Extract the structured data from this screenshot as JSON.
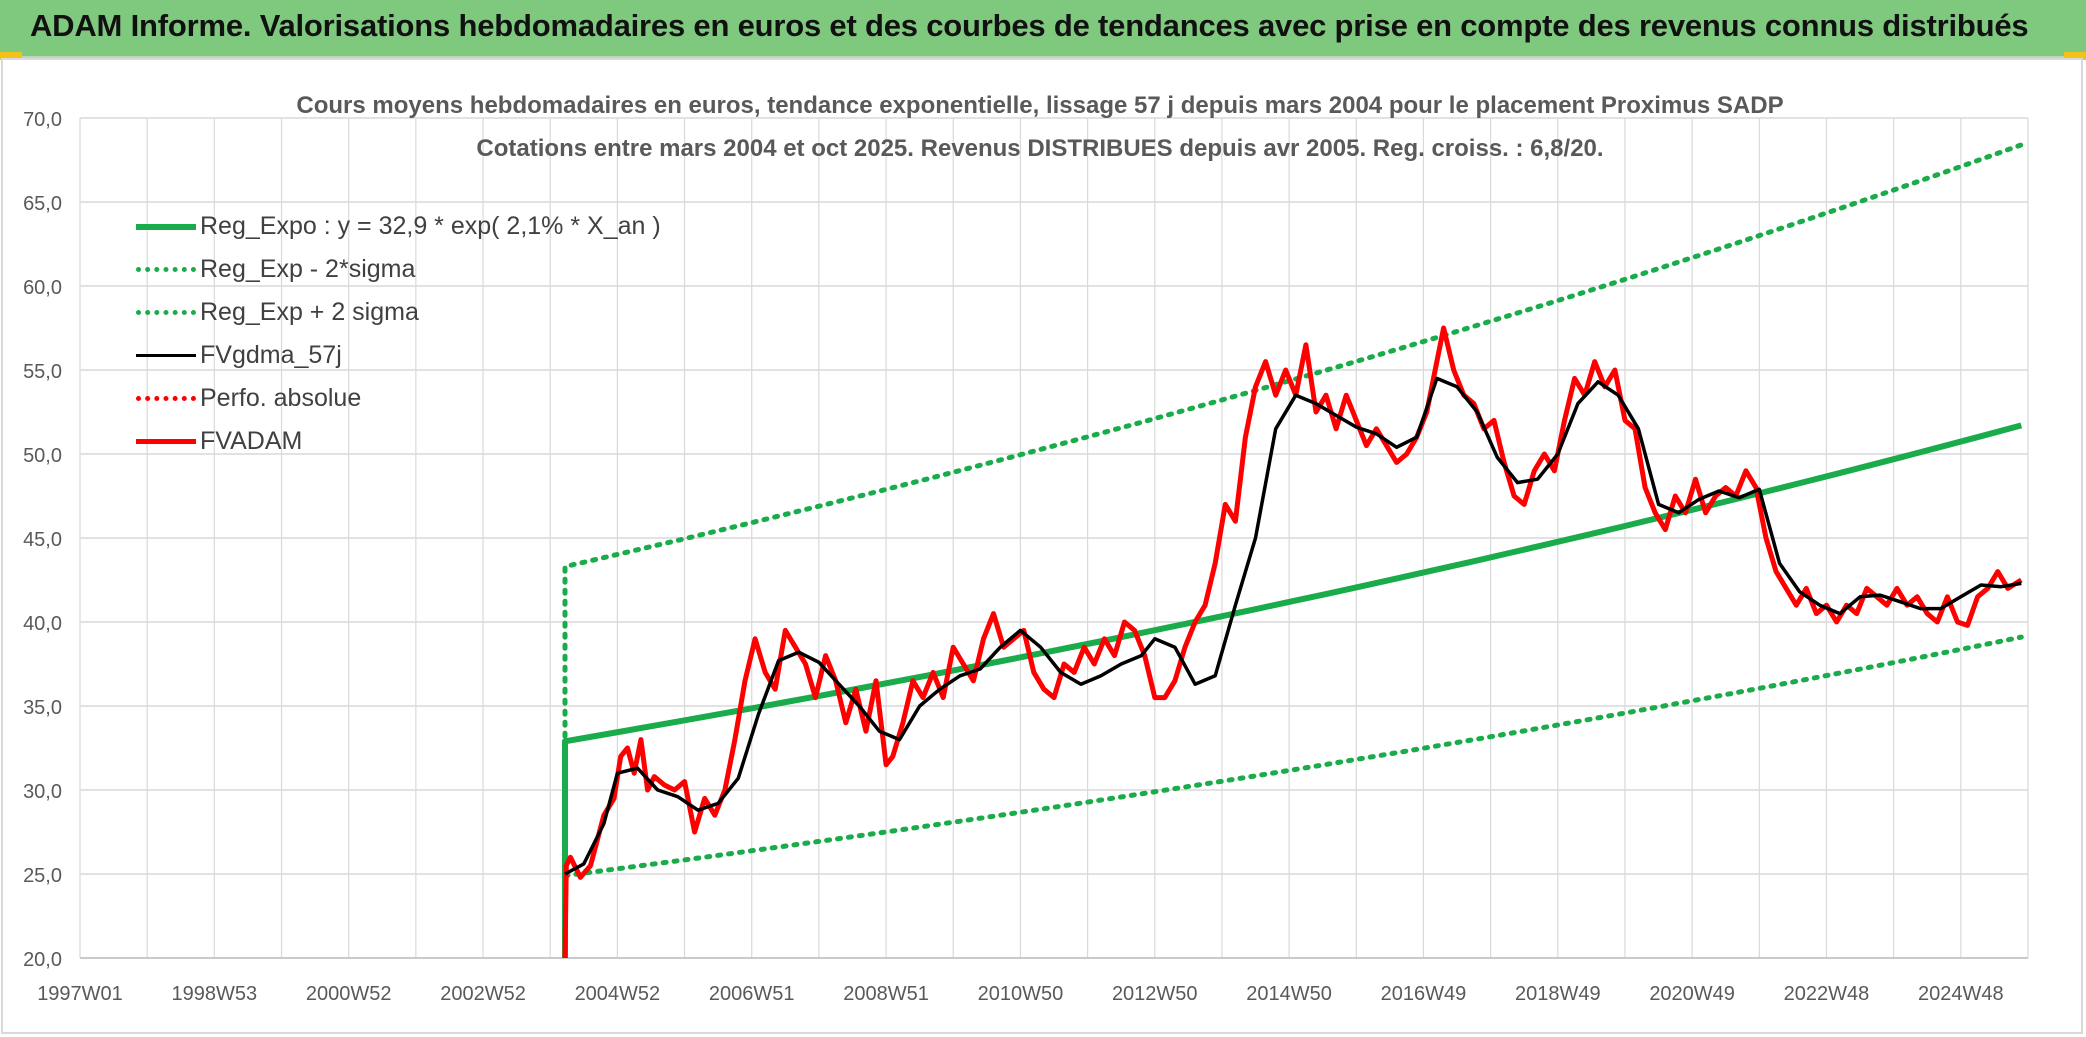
{
  "banner": {
    "title": "ADAM Informe. Valorisations hebdomadaires en euros et des courbes de tendances avec prise en compte des revenus connus distribués"
  },
  "colors": {
    "banner_bg": "#7fc97f",
    "reg_green": "#1aab4a",
    "black_line": "#000000",
    "red_line": "#ff0000",
    "grid": "#d9d9d9",
    "text": "#595959"
  },
  "chart_data": {
    "type": "line",
    "title": "Cours moyens hebdomadaires en euros, tendance exponentielle, lissage 57 j depuis mars 2004 pour le placement Proximus SADP",
    "subtitle": "Cotations entre mars 2004 et oct 2025. Revenus DISTRIBUES depuis avr 2005. Reg. croiss. : 6,8/20.",
    "ylim": [
      20,
      70
    ],
    "y_ticks": [
      "70,0",
      "65,0",
      "60,0",
      "55,0",
      "50,0",
      "45,0",
      "40,0",
      "35,0",
      "30,0",
      "25,0",
      "20,0"
    ],
    "x_ticks": [
      "1997W01",
      "1998W53",
      "2000W52",
      "2002W52",
      "2004W52",
      "2006W51",
      "2008W51",
      "2010W50",
      "2012W50",
      "2014W50",
      "2016W49",
      "2018W49",
      "2020W49",
      "2022W48",
      "2024W48"
    ],
    "xlim": [
      1997.0,
      2026.0
    ],
    "grid": true,
    "legend_placement": "top-left",
    "series": [
      {
        "name": "Reg_Expo : y = 32,9 * exp( 2,1% *  X_an )",
        "style": "solid-thick",
        "color": "#1aab4a",
        "x": [
          2004.22,
          2004.22,
          2025.9
        ],
        "y": [
          20.0,
          32.9,
          51.7
        ]
      },
      {
        "name": "Reg_Exp - 2*sigma",
        "style": "dotted",
        "color": "#1aab4a",
        "x": [
          2004.22,
          2025.9
        ],
        "y": [
          24.9,
          39.1
        ]
      },
      {
        "name": "Reg_Exp + 2 sigma",
        "style": "dotted",
        "color": "#1aab4a",
        "x": [
          2004.22,
          2004.22,
          2025.9
        ],
        "y": [
          26.0,
          43.3,
          68.4
        ]
      },
      {
        "name": "FVgdma_57j",
        "style": "solid",
        "color": "#000000",
        "x": [
          2004.22,
          2004.5,
          2004.8,
          2005.0,
          2005.3,
          2005.6,
          2005.9,
          2006.2,
          2006.5,
          2006.8,
          2007.1,
          2007.4,
          2007.7,
          2008.0,
          2008.3,
          2008.6,
          2008.9,
          2009.2,
          2009.5,
          2009.8,
          2010.1,
          2010.4,
          2010.7,
          2011.0,
          2011.3,
          2011.6,
          2011.9,
          2012.2,
          2012.5,
          2012.8,
          2013.0,
          2013.3,
          2013.6,
          2013.9,
          2014.2,
          2014.5,
          2014.8,
          2015.1,
          2015.4,
          2015.7,
          2016.0,
          2016.3,
          2016.6,
          2016.9,
          2017.2,
          2017.5,
          2017.8,
          2018.1,
          2018.4,
          2018.7,
          2019.0,
          2019.3,
          2019.6,
          2019.9,
          2020.2,
          2020.5,
          2020.8,
          2021.1,
          2021.4,
          2021.7,
          2022.0,
          2022.3,
          2022.6,
          2022.9,
          2023.2,
          2023.5,
          2023.8,
          2024.1,
          2024.4,
          2024.7,
          2025.0,
          2025.3,
          2025.6,
          2025.9
        ],
        "y": [
          25.0,
          25.6,
          28.0,
          31.0,
          31.3,
          30.0,
          29.6,
          28.8,
          29.2,
          30.7,
          34.5,
          37.7,
          38.2,
          37.6,
          36.3,
          35.0,
          33.5,
          33.0,
          35.0,
          36.0,
          36.8,
          37.2,
          38.5,
          39.5,
          38.5,
          37.0,
          36.3,
          36.8,
          37.5,
          38.0,
          39.0,
          38.5,
          36.3,
          36.8,
          41.0,
          45.0,
          51.5,
          53.5,
          53.0,
          52.3,
          51.6,
          51.2,
          50.4,
          51.0,
          54.5,
          54.0,
          52.5,
          49.8,
          48.3,
          48.5,
          50.0,
          53.0,
          54.3,
          53.5,
          51.5,
          47.0,
          46.5,
          47.3,
          47.8,
          47.4,
          47.9,
          43.5,
          41.8,
          41.0,
          40.5,
          41.5,
          41.6,
          41.2,
          40.8,
          40.8,
          41.5,
          42.2,
          42.1,
          42.3
        ]
      },
      {
        "name": "Perfo. absolue",
        "style": "dotted",
        "color": "#ff0000",
        "x": [],
        "y": []
      },
      {
        "name": "FVADAM",
        "style": "solid-thick",
        "color": "#ff0000",
        "x": [
          2004.22,
          2004.24,
          2004.3,
          2004.45,
          2004.6,
          2004.8,
          2004.95,
          2005.05,
          2005.15,
          2005.25,
          2005.35,
          2005.45,
          2005.55,
          2005.7,
          2005.85,
          2006.0,
          2006.15,
          2006.3,
          2006.45,
          2006.6,
          2006.75,
          2006.9,
          2007.05,
          2007.2,
          2007.35,
          2007.5,
          2007.65,
          2007.8,
          2007.95,
          2008.1,
          2008.25,
          2008.4,
          2008.55,
          2008.7,
          2008.85,
          2009.0,
          2009.1,
          2009.25,
          2009.4,
          2009.55,
          2009.7,
          2009.85,
          2010.0,
          2010.15,
          2010.3,
          2010.45,
          2010.6,
          2010.75,
          2010.9,
          2011.05,
          2011.2,
          2011.35,
          2011.5,
          2011.65,
          2011.8,
          2011.95,
          2012.1,
          2012.25,
          2012.4,
          2012.55,
          2012.7,
          2012.85,
          2013.0,
          2013.15,
          2013.3,
          2013.45,
          2013.6,
          2013.75,
          2013.9,
          2014.05,
          2014.2,
          2014.35,
          2014.5,
          2014.65,
          2014.8,
          2014.95,
          2015.1,
          2015.25,
          2015.4,
          2015.55,
          2015.7,
          2015.85,
          2016.0,
          2016.15,
          2016.3,
          2016.45,
          2016.6,
          2016.75,
          2016.9,
          2017.05,
          2017.15,
          2017.3,
          2017.45,
          2017.6,
          2017.75,
          2017.9,
          2018.05,
          2018.2,
          2018.35,
          2018.5,
          2018.65,
          2018.8,
          2018.95,
          2019.1,
          2019.25,
          2019.4,
          2019.55,
          2019.7,
          2019.85,
          2020.0,
          2020.15,
          2020.3,
          2020.45,
          2020.6,
          2020.75,
          2020.9,
          2021.05,
          2021.2,
          2021.35,
          2021.5,
          2021.65,
          2021.8,
          2021.95,
          2022.1,
          2022.25,
          2022.4,
          2022.55,
          2022.7,
          2022.85,
          2023.0,
          2023.15,
          2023.3,
          2023.45,
          2023.6,
          2023.75,
          2023.9,
          2024.05,
          2024.2,
          2024.35,
          2024.5,
          2024.65,
          2024.8,
          2024.95,
          2025.1,
          2025.25,
          2025.4,
          2025.55,
          2025.7,
          2025.9
        ],
        "y": [
          20.0,
          25.5,
          26.0,
          24.8,
          25.5,
          28.5,
          29.5,
          32.0,
          32.5,
          31.0,
          33.0,
          30.0,
          30.8,
          30.3,
          30.0,
          30.5,
          27.5,
          29.5,
          28.5,
          30.0,
          33.0,
          36.5,
          39.0,
          37.0,
          36.0,
          39.5,
          38.5,
          37.5,
          35.5,
          38.0,
          36.5,
          34.0,
          36.0,
          33.5,
          36.5,
          31.5,
          32.0,
          34.0,
          36.5,
          35.5,
          37.0,
          35.5,
          38.5,
          37.5,
          36.5,
          39.0,
          40.5,
          38.5,
          39.0,
          39.5,
          37.0,
          36.0,
          35.5,
          37.5,
          37.0,
          38.5,
          37.5,
          39.0,
          38.0,
          40.0,
          39.5,
          38.0,
          35.5,
          35.5,
          36.5,
          38.5,
          40.0,
          41.0,
          43.5,
          47.0,
          46.0,
          51.0,
          54.0,
          55.5,
          53.5,
          55.0,
          53.5,
          56.5,
          52.5,
          53.5,
          51.5,
          53.5,
          52.0,
          50.5,
          51.5,
          50.5,
          49.5,
          50.0,
          51.0,
          52.5,
          54.5,
          57.5,
          55.0,
          53.5,
          53.0,
          51.5,
          52.0,
          49.5,
          47.5,
          47.0,
          49.0,
          50.0,
          49.0,
          52.0,
          54.5,
          53.5,
          55.5,
          54.0,
          55.0,
          52.0,
          51.5,
          48.0,
          46.5,
          45.5,
          47.5,
          46.5,
          48.5,
          46.5,
          47.5,
          48.0,
          47.5,
          49.0,
          48.0,
          45.0,
          43.0,
          42.0,
          41.0,
          42.0,
          40.5,
          41.0,
          40.0,
          41.0,
          40.5,
          42.0,
          41.5,
          41.0,
          42.0,
          41.0,
          41.5,
          40.5,
          40.0,
          41.5,
          40.0,
          39.8,
          41.5,
          42.0,
          43.0,
          42.0,
          42.5
        ]
      }
    ]
  }
}
